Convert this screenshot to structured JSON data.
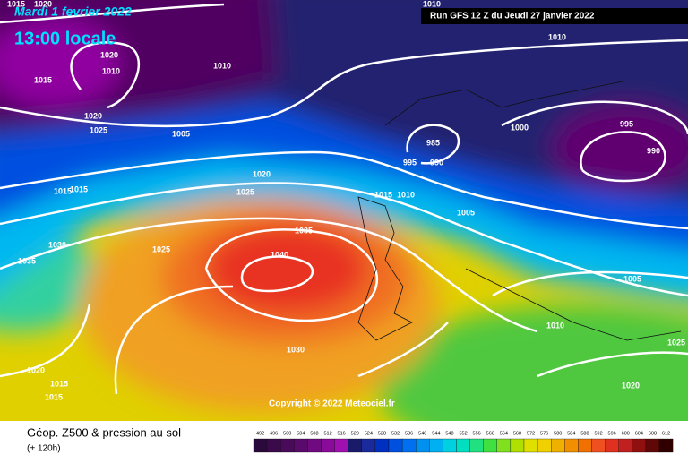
{
  "header": {
    "date": "Mardi 1 fevrier 2022",
    "time": "13:00 locale",
    "run": "Run GFS 12 Z du Jeudi 27 janvier 2022"
  },
  "copyright": "Copyright © 2022 Meteociel.fr",
  "footer": {
    "title": "Géop. Z500 & pression au sol",
    "lead": "(+ 120h)"
  },
  "isobar_labels": [
    1015,
    1020,
    1010,
    1010,
    1020,
    1010,
    1010,
    1015,
    1020,
    1025,
    1005,
    985,
    995,
    990,
    1000,
    995,
    990,
    1020,
    1015,
    1015,
    1025,
    1015,
    1010,
    1005,
    1030,
    1035,
    1025,
    1040,
    1035,
    1005,
    1010,
    1030,
    1025,
    1020,
    1015,
    1015,
    1020
  ],
  "scale": {
    "labels": [
      492,
      496,
      500,
      504,
      508,
      512,
      516,
      520,
      524,
      528,
      532,
      536,
      540,
      544,
      548,
      552,
      556,
      560,
      564,
      568,
      572,
      576,
      580,
      584,
      588,
      592,
      596,
      600,
      604,
      608,
      612
    ],
    "colors": [
      "#2a0a3a",
      "#3a0a4a",
      "#4a0a5a",
      "#5a0a6a",
      "#700a80",
      "#8a0a9a",
      "#a010b0",
      "#1a1a6a",
      "#1a2a9a",
      "#0030c0",
      "#0050e0",
      "#0070f0",
      "#0090f0",
      "#00b0f0",
      "#00d0e0",
      "#00e0c0",
      "#20e080",
      "#40e040",
      "#80e020",
      "#b0e000",
      "#e0e000",
      "#f0d000",
      "#f0b000",
      "#f09000",
      "#f07000",
      "#f05020",
      "#e03020",
      "#c02020",
      "#901010",
      "#600808",
      "#300000"
    ]
  }
}
